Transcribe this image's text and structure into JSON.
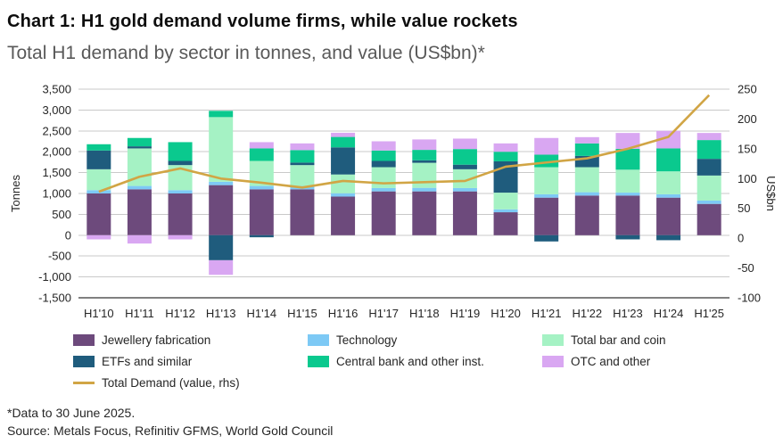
{
  "header": {
    "title": "Chart 1: H1 gold demand volume firms, while value rockets",
    "subtitle": "Total H1 demand by sector in tonnes, and value (US$bn)*"
  },
  "chart_data": {
    "type": "bar",
    "stacked": true,
    "grid": true,
    "categories": [
      "H1'10",
      "H1'11",
      "H1'12",
      "H1'13",
      "H1'14",
      "H1'15",
      "H1'16",
      "H1'17",
      "H1'18",
      "H1'19",
      "H1'20",
      "H1'21",
      "H1'22",
      "H1'23",
      "H1'24",
      "H1'25"
    ],
    "series": [
      {
        "name": "Jewellery fabrication",
        "color": "#6d4a7c",
        "values": [
          1000,
          1100,
          1000,
          1200,
          1100,
          1100,
          925,
          1050,
          1050,
          1050,
          550,
          900,
          950,
          950,
          900,
          750
        ]
      },
      {
        "name": "Technology",
        "color": "#7dc9f5",
        "values": [
          80,
          80,
          80,
          80,
          80,
          80,
          80,
          80,
          85,
          80,
          70,
          80,
          80,
          70,
          80,
          80
        ]
      },
      {
        "name": "Total bar and coin",
        "color": "#a5f2c4",
        "values": [
          500,
          900,
          600,
          1550,
          600,
          500,
          450,
          500,
          600,
          450,
          400,
          650,
          600,
          550,
          550,
          600
        ]
      },
      {
        "name": "ETFs and similar",
        "color": "#1f5c7d",
        "values": [
          450,
          50,
          100,
          -600,
          -50,
          60,
          650,
          150,
          60,
          110,
          750,
          -150,
          270,
          -100,
          -120,
          400
        ]
      },
      {
        "name": "Central bank and other inst.",
        "color": "#0ac98e",
        "values": [
          150,
          200,
          450,
          150,
          300,
          300,
          250,
          250,
          250,
          375,
          230,
          300,
          300,
          500,
          550,
          450
        ]
      },
      {
        "name": "OTC and other",
        "color": "#d9a7f2",
        "values": [
          -100,
          -200,
          -100,
          -350,
          150,
          160,
          100,
          220,
          250,
          250,
          200,
          400,
          150,
          380,
          420,
          170
        ]
      }
    ],
    "line": {
      "name": "Total Demand (value, rhs)",
      "color": "#d1a545",
      "values": [
        78,
        103,
        117,
        100,
        93,
        85,
        96,
        92,
        94,
        96,
        120,
        127,
        134,
        150,
        170,
        240
      ]
    },
    "ylabel_left": "Tonnes",
    "ylabel_right": "US$bn",
    "ylim_left": [
      -1500,
      3500
    ],
    "ytick_step_left": 500,
    "ylim_right": [
      -100,
      250
    ],
    "ytick_step_right": 50
  },
  "footer": {
    "note": "*Data to 30 June 2025.",
    "source": "Source: Metals Focus, Refinitiv GFMS, World Gold Council"
  }
}
